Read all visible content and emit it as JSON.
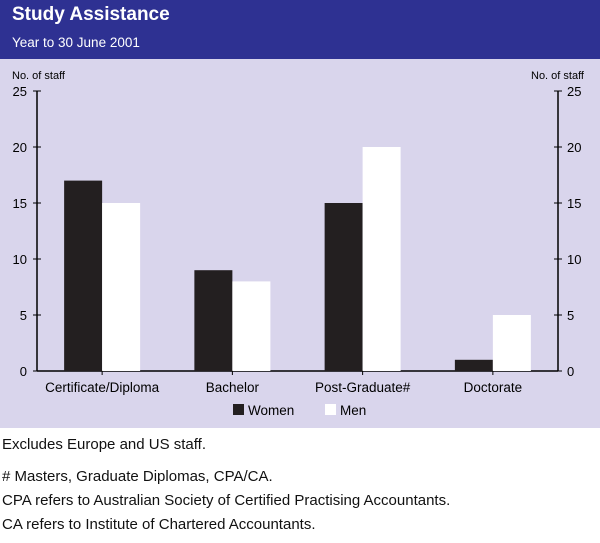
{
  "header": {
    "title": "Study Assistance",
    "subtitle": "Year to 30 June 2001"
  },
  "colors": {
    "header_bg": "#2e3192",
    "panel_bg": "#d9d5ec",
    "women": "#231f20",
    "men": "#ffffff"
  },
  "chart_data": {
    "type": "bar",
    "title": "Study Assistance",
    "subtitle": "Year to 30 June 2001",
    "ylabel_left": "No. of staff",
    "ylabel_right": "No. of staff",
    "xlabel": "",
    "ylim": [
      0,
      25
    ],
    "yticks": [
      "0",
      "5",
      "10",
      "15",
      "20",
      "25"
    ],
    "categories": [
      "Certificate/Diploma",
      "Bachelor",
      "Post-Graduate#",
      "Doctorate"
    ],
    "series": [
      {
        "name": "Women",
        "values": [
          17,
          9,
          15,
          1
        ]
      },
      {
        "name": "Men",
        "values": [
          15,
          8,
          20,
          5
        ]
      }
    ],
    "legend_position": "bottom-center",
    "grid": false
  },
  "notes": [
    "Excludes Europe and US staff.",
    "# Masters, Graduate Diplomas, CPA/CA.",
    "CPA refers to Australian Society of Certified Practising Accountants.",
    "CA refers to Institute of Chartered Accountants."
  ]
}
